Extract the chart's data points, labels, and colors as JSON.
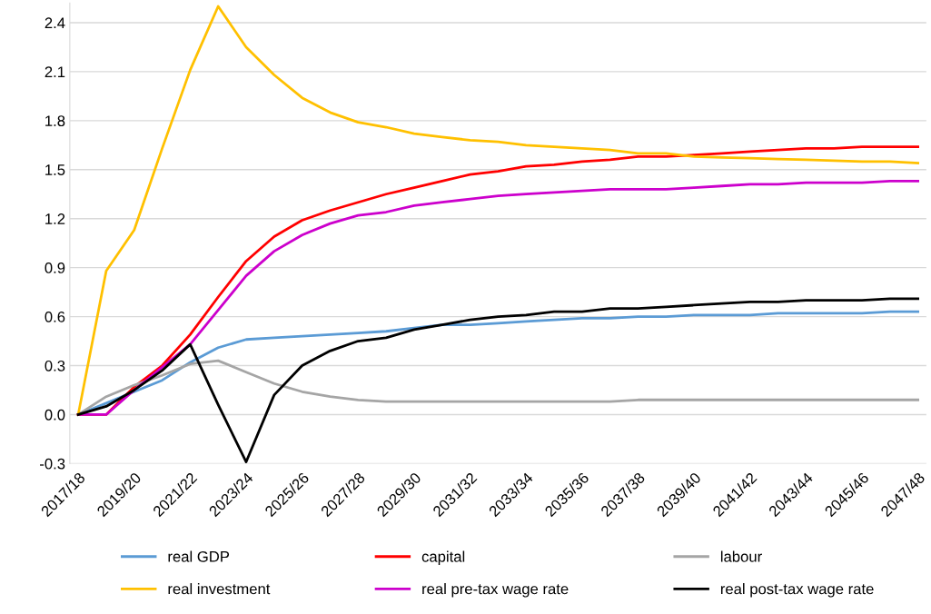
{
  "chart_data": {
    "type": "line",
    "categories": [
      "2017/18",
      null,
      "2019/20",
      null,
      "2021/22",
      null,
      "2023/24",
      null,
      "2025/26",
      null,
      "2027/28",
      null,
      "2029/30",
      null,
      "2031/32",
      null,
      "2033/34",
      null,
      "2035/36",
      null,
      "2037/38",
      null,
      "2039/40",
      null,
      "2041/42",
      null,
      "2043/44",
      null,
      "2045/46",
      null,
      "2047/48"
    ],
    "series": [
      {
        "name": "real GDP",
        "color": "#5b9bd5",
        "values": [
          0,
          0.07,
          0.14,
          0.21,
          0.32,
          0.41,
          0.46,
          0.47,
          0.48,
          0.49,
          0.5,
          0.51,
          0.53,
          0.55,
          0.55,
          0.56,
          0.57,
          0.58,
          0.59,
          0.59,
          0.6,
          0.6,
          0.61,
          0.61,
          0.61,
          0.62,
          0.62,
          0.62,
          0.62,
          0.63,
          0.63
        ]
      },
      {
        "name": "capital",
        "color": "#ff0000",
        "values": [
          0,
          0,
          0.17,
          0.3,
          0.49,
          0.72,
          0.94,
          1.09,
          1.19,
          1.25,
          1.3,
          1.35,
          1.39,
          1.43,
          1.47,
          1.49,
          1.52,
          1.53,
          1.55,
          1.56,
          1.58,
          1.58,
          1.59,
          1.6,
          1.61,
          1.62,
          1.63,
          1.63,
          1.64,
          1.64,
          1.64
        ]
      },
      {
        "name": "labour",
        "color": "#a5a5a5",
        "values": [
          0,
          0.11,
          0.18,
          0.24,
          0.31,
          0.33,
          0.26,
          0.19,
          0.14,
          0.11,
          0.09,
          0.08,
          0.08,
          0.08,
          0.08,
          0.08,
          0.08,
          0.08,
          0.08,
          0.08,
          0.09,
          0.09,
          0.09,
          0.09,
          0.09,
          0.09,
          0.09,
          0.09,
          0.09,
          0.09,
          0.09
        ]
      },
      {
        "name": "real investment",
        "color": "#ffc000",
        "values": [
          0,
          0.88,
          1.13,
          1.63,
          2.11,
          2.5,
          2.25,
          2.08,
          1.94,
          1.85,
          1.79,
          1.76,
          1.72,
          1.7,
          1.68,
          1.67,
          1.65,
          1.64,
          1.63,
          1.62,
          1.6,
          1.6,
          1.58,
          1.575,
          1.57,
          1.565,
          1.56,
          1.555,
          1.55,
          1.55,
          1.54
        ]
      },
      {
        "name": "real pre-tax wage rate",
        "color": "#cc00cc",
        "values": [
          0,
          0,
          0.15,
          0.29,
          0.43,
          0.64,
          0.85,
          1.0,
          1.1,
          1.17,
          1.22,
          1.24,
          1.28,
          1.3,
          1.32,
          1.34,
          1.35,
          1.36,
          1.37,
          1.38,
          1.38,
          1.38,
          1.39,
          1.4,
          1.41,
          1.41,
          1.42,
          1.42,
          1.42,
          1.43,
          1.43
        ]
      },
      {
        "name": "real post-tax wage rate",
        "color": "#000000",
        "values": [
          0,
          0.05,
          0.15,
          0.27,
          0.43,
          0.06,
          -0.29,
          0.12,
          0.3,
          0.39,
          0.45,
          0.47,
          0.52,
          0.55,
          0.58,
          0.6,
          0.61,
          0.63,
          0.63,
          0.65,
          0.65,
          0.66,
          0.67,
          0.68,
          0.69,
          0.69,
          0.7,
          0.7,
          0.7,
          0.71,
          0.71
        ]
      }
    ],
    "ylim": [
      -0.3,
      2.52
    ],
    "yticks": [
      {
        "value": -0.3,
        "label": "-0.3"
      },
      {
        "value": 0,
        "label": "0.0"
      },
      0.3,
      0.6,
      0.9,
      1.2,
      1.5,
      1.8,
      2.1,
      2.4
    ],
    "grid": "y",
    "legend": "bottom",
    "marker": "none",
    "line_style": "solid"
  }
}
